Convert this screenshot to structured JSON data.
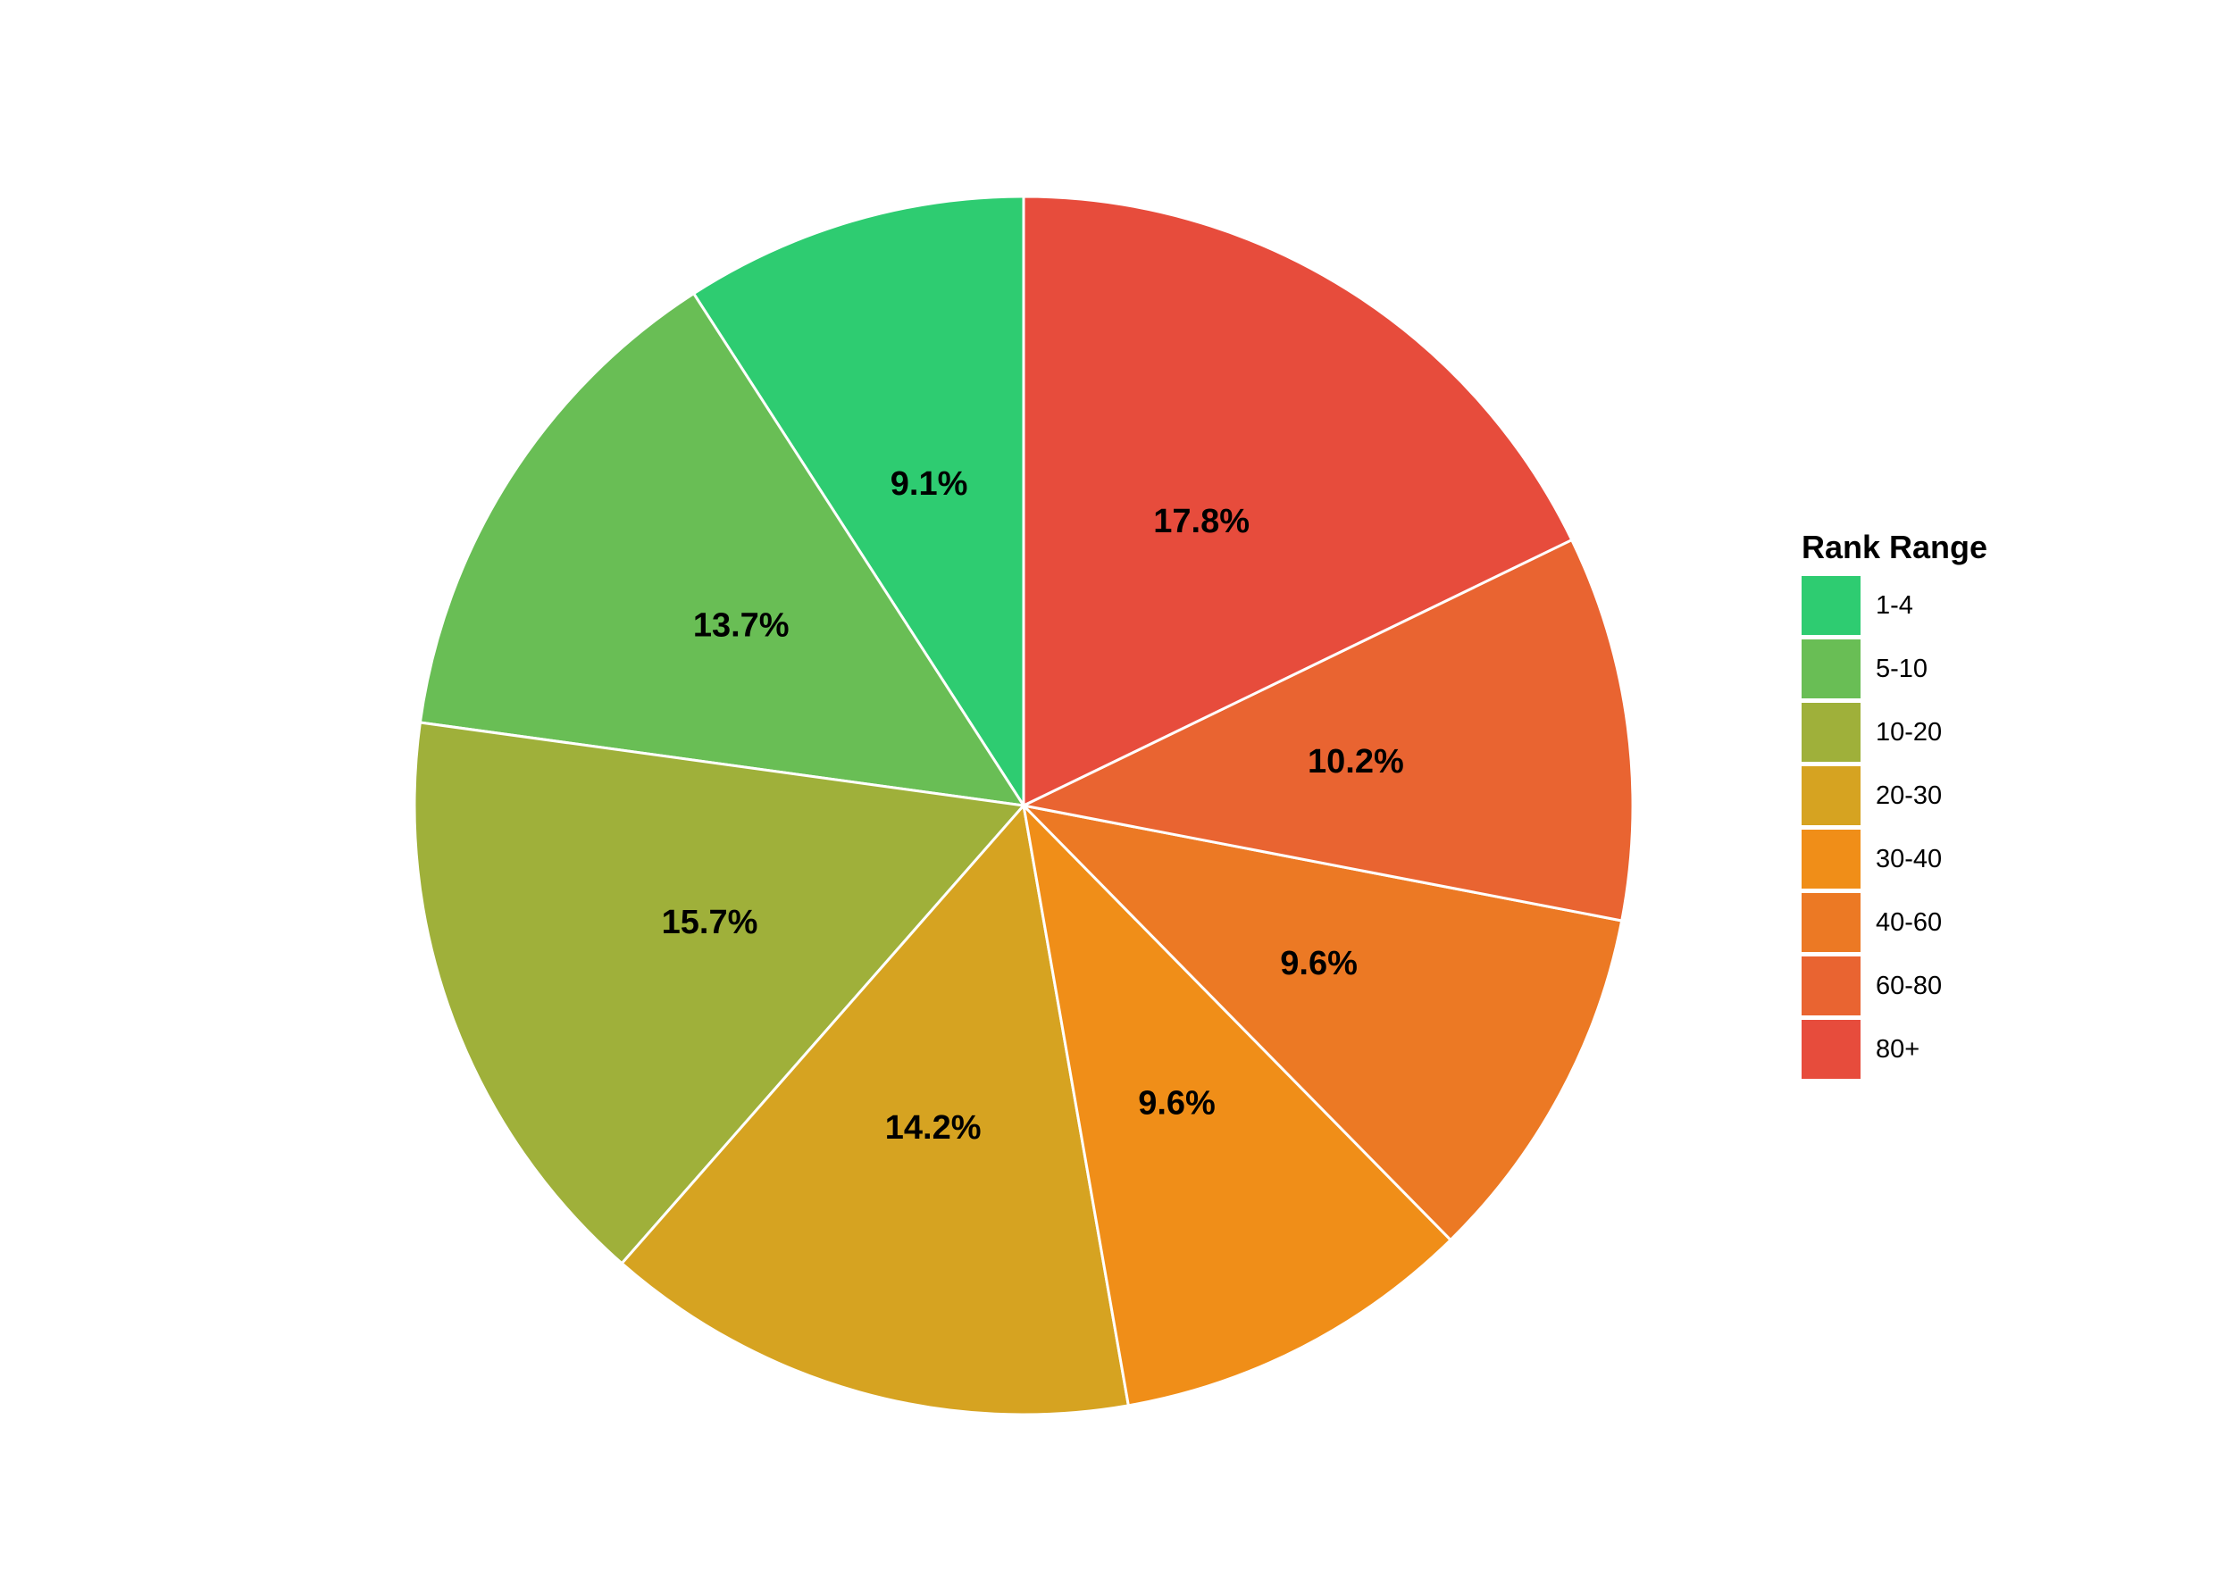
{
  "chart_data": {
    "type": "pie",
    "title": "",
    "legend": {
      "title": "Rank Range",
      "placement": "right"
    },
    "categories": [
      "1-4",
      "5-10",
      "10-20",
      "20-30",
      "30-40",
      "40-60",
      "60-80",
      "80+"
    ],
    "values": [
      9.1,
      13.7,
      15.7,
      14.2,
      9.6,
      9.6,
      10.2,
      17.8
    ],
    "value_labels": [
      "9.1%",
      "13.7%",
      "15.7%",
      "14.2%",
      "9.6%",
      "9.6%",
      "10.2%",
      "17.8%"
    ],
    "colors": [
      "#2ecc71",
      "#69be55",
      "#9fb03a",
      "#d6a321",
      "#f08e18",
      "#ec7924",
      "#e96431",
      "#e74c3c"
    ],
    "direction": "counterclockwise",
    "start": "12 o'clock"
  }
}
